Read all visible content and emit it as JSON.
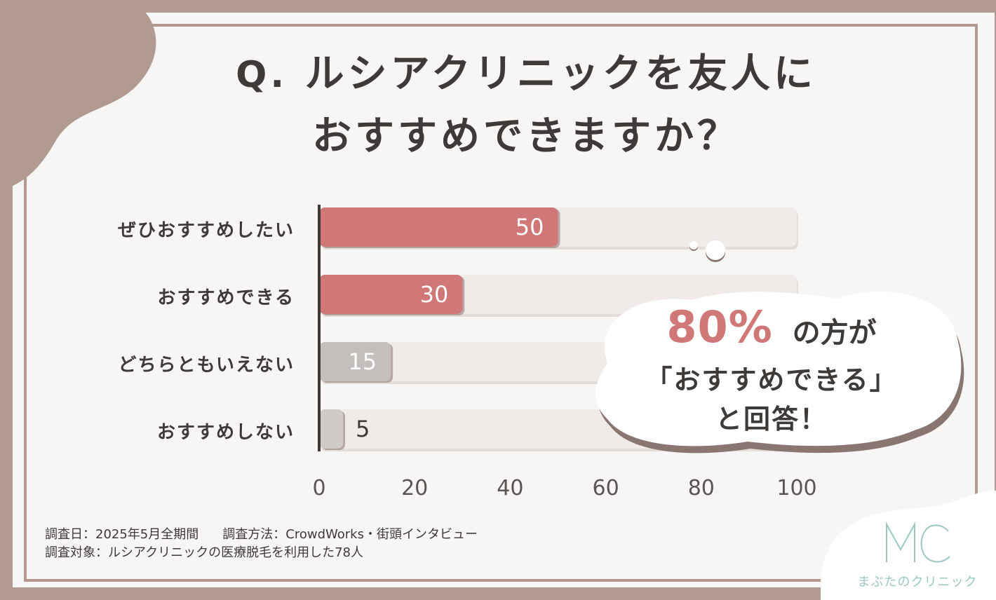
{
  "title": {
    "q_mark": "Q.",
    "line1": "ルシアクリニックを友人に",
    "line2": "おすすめできますか？"
  },
  "chart_data": {
    "type": "bar",
    "orientation": "horizontal",
    "categories": [
      "ぜひおすすめしたい",
      "おすすめできる",
      "どちらともいえない",
      "おすすめしない"
    ],
    "values": [
      50,
      30,
      15,
      5
    ],
    "xlim": [
      0,
      100
    ],
    "xticks": [
      "0",
      "20",
      "40",
      "60",
      "80",
      "100"
    ],
    "colors": [
      "#cf7877",
      "#cf7877",
      "#c3bfbd",
      "#cfcbc9"
    ],
    "track_color": "#f0ebe9"
  },
  "callout": {
    "percent": "80%",
    "line1_rest": "の方が",
    "line2": "「おすすめできる」",
    "line3": "と回答！"
  },
  "footer": {
    "survey_date": "調査日：2025年5月全期間",
    "survey_method": "調査方法：CrowdWorks・街頭インタビュー",
    "survey_target": "調査対象：ルシアクリニックの医療脱毛を利用した78人"
  },
  "logo": {
    "mark": "MC",
    "name": "まぶたのクリニック",
    "color": "#9cc7c2"
  },
  "colors": {
    "frame": "#b09a92",
    "accent": "#cf7877",
    "text": "#3d3a38"
  }
}
